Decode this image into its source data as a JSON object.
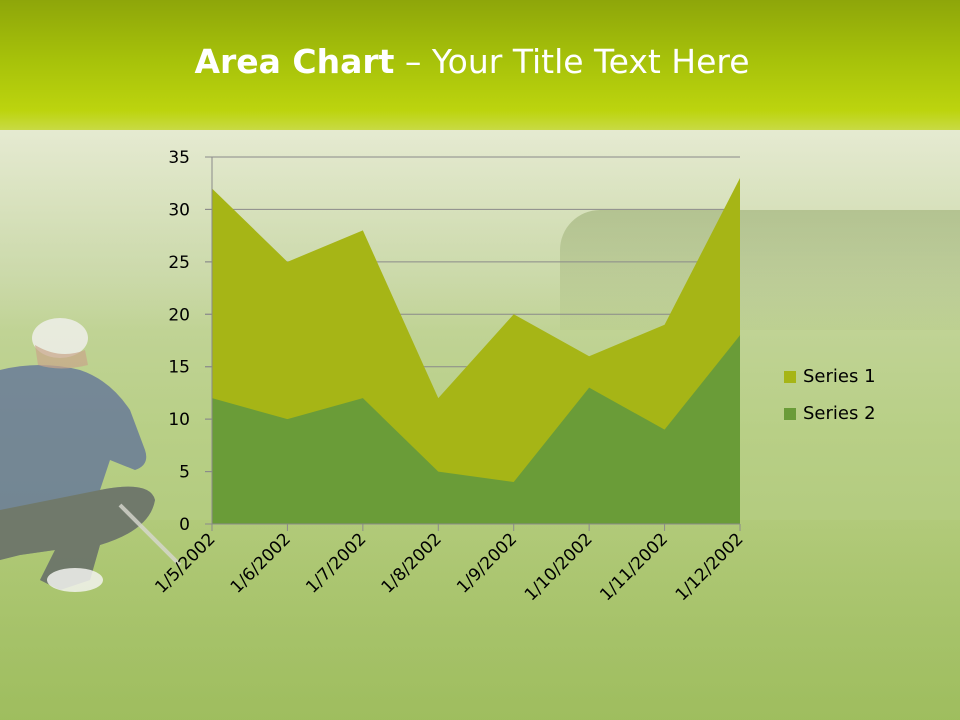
{
  "slide": {
    "title_bold": "Area Chart",
    "title_rest": " – Your Title Text Here"
  },
  "colors": {
    "series1": "#a6b516",
    "series2": "#6a9c38",
    "header": "#a6c10a"
  },
  "chart_data": {
    "type": "area",
    "title": "",
    "xlabel": "",
    "ylabel": "",
    "categories": [
      "1/5/2002",
      "1/6/2002",
      "1/7/2002",
      "1/8/2002",
      "1/9/2002",
      "1/10/2002",
      "1/11/2002",
      "1/12/2002"
    ],
    "series": [
      {
        "name": "Series 1",
        "values": [
          32,
          25,
          28,
          12,
          20,
          16,
          19,
          33
        ]
      },
      {
        "name": "Series 2",
        "values": [
          12,
          10,
          12,
          5,
          4,
          13,
          9,
          18
        ]
      }
    ],
    "ylim": [
      0,
      35
    ],
    "yticks": [
      "0",
      "5",
      "10",
      "15",
      "20",
      "25",
      "30",
      "35"
    ],
    "grid": true,
    "legend_position": "right"
  }
}
